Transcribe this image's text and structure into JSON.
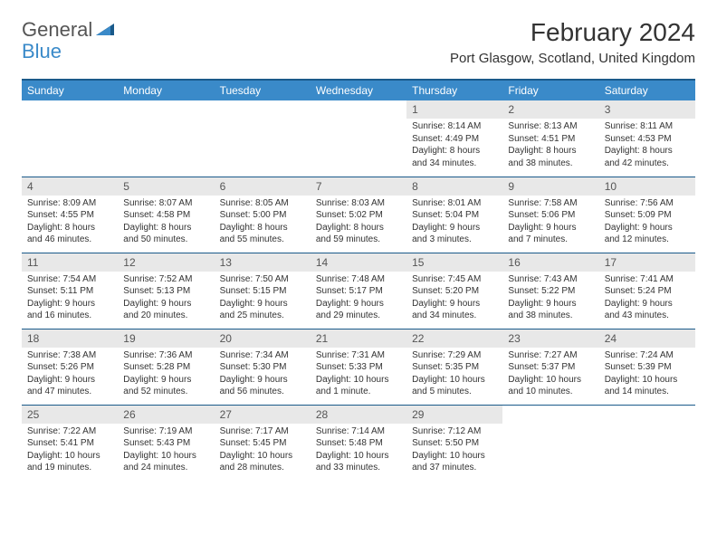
{
  "logo": {
    "text1": "General",
    "text2": "Blue"
  },
  "title": "February 2024",
  "location": "Port Glasgow, Scotland, United Kingdom",
  "colors": {
    "header_bg": "#3a8ac9",
    "header_border": "#1a5a8a",
    "daynum_bg": "#e8e8e8",
    "text": "#333333",
    "logo_gray": "#555555",
    "logo_blue": "#3a8ac9"
  },
  "weekdays": [
    "Sunday",
    "Monday",
    "Tuesday",
    "Wednesday",
    "Thursday",
    "Friday",
    "Saturday"
  ],
  "weeks": [
    [
      null,
      null,
      null,
      null,
      {
        "n": "1",
        "sr": "Sunrise: 8:14 AM",
        "ss": "Sunset: 4:49 PM",
        "dl": "Daylight: 8 hours and 34 minutes."
      },
      {
        "n": "2",
        "sr": "Sunrise: 8:13 AM",
        "ss": "Sunset: 4:51 PM",
        "dl": "Daylight: 8 hours and 38 minutes."
      },
      {
        "n": "3",
        "sr": "Sunrise: 8:11 AM",
        "ss": "Sunset: 4:53 PM",
        "dl": "Daylight: 8 hours and 42 minutes."
      }
    ],
    [
      {
        "n": "4",
        "sr": "Sunrise: 8:09 AM",
        "ss": "Sunset: 4:55 PM",
        "dl": "Daylight: 8 hours and 46 minutes."
      },
      {
        "n": "5",
        "sr": "Sunrise: 8:07 AM",
        "ss": "Sunset: 4:58 PM",
        "dl": "Daylight: 8 hours and 50 minutes."
      },
      {
        "n": "6",
        "sr": "Sunrise: 8:05 AM",
        "ss": "Sunset: 5:00 PM",
        "dl": "Daylight: 8 hours and 55 minutes."
      },
      {
        "n": "7",
        "sr": "Sunrise: 8:03 AM",
        "ss": "Sunset: 5:02 PM",
        "dl": "Daylight: 8 hours and 59 minutes."
      },
      {
        "n": "8",
        "sr": "Sunrise: 8:01 AM",
        "ss": "Sunset: 5:04 PM",
        "dl": "Daylight: 9 hours and 3 minutes."
      },
      {
        "n": "9",
        "sr": "Sunrise: 7:58 AM",
        "ss": "Sunset: 5:06 PM",
        "dl": "Daylight: 9 hours and 7 minutes."
      },
      {
        "n": "10",
        "sr": "Sunrise: 7:56 AM",
        "ss": "Sunset: 5:09 PM",
        "dl": "Daylight: 9 hours and 12 minutes."
      }
    ],
    [
      {
        "n": "11",
        "sr": "Sunrise: 7:54 AM",
        "ss": "Sunset: 5:11 PM",
        "dl": "Daylight: 9 hours and 16 minutes."
      },
      {
        "n": "12",
        "sr": "Sunrise: 7:52 AM",
        "ss": "Sunset: 5:13 PM",
        "dl": "Daylight: 9 hours and 20 minutes."
      },
      {
        "n": "13",
        "sr": "Sunrise: 7:50 AM",
        "ss": "Sunset: 5:15 PM",
        "dl": "Daylight: 9 hours and 25 minutes."
      },
      {
        "n": "14",
        "sr": "Sunrise: 7:48 AM",
        "ss": "Sunset: 5:17 PM",
        "dl": "Daylight: 9 hours and 29 minutes."
      },
      {
        "n": "15",
        "sr": "Sunrise: 7:45 AM",
        "ss": "Sunset: 5:20 PM",
        "dl": "Daylight: 9 hours and 34 minutes."
      },
      {
        "n": "16",
        "sr": "Sunrise: 7:43 AM",
        "ss": "Sunset: 5:22 PM",
        "dl": "Daylight: 9 hours and 38 minutes."
      },
      {
        "n": "17",
        "sr": "Sunrise: 7:41 AM",
        "ss": "Sunset: 5:24 PM",
        "dl": "Daylight: 9 hours and 43 minutes."
      }
    ],
    [
      {
        "n": "18",
        "sr": "Sunrise: 7:38 AM",
        "ss": "Sunset: 5:26 PM",
        "dl": "Daylight: 9 hours and 47 minutes."
      },
      {
        "n": "19",
        "sr": "Sunrise: 7:36 AM",
        "ss": "Sunset: 5:28 PM",
        "dl": "Daylight: 9 hours and 52 minutes."
      },
      {
        "n": "20",
        "sr": "Sunrise: 7:34 AM",
        "ss": "Sunset: 5:30 PM",
        "dl": "Daylight: 9 hours and 56 minutes."
      },
      {
        "n": "21",
        "sr": "Sunrise: 7:31 AM",
        "ss": "Sunset: 5:33 PM",
        "dl": "Daylight: 10 hours and 1 minute."
      },
      {
        "n": "22",
        "sr": "Sunrise: 7:29 AM",
        "ss": "Sunset: 5:35 PM",
        "dl": "Daylight: 10 hours and 5 minutes."
      },
      {
        "n": "23",
        "sr": "Sunrise: 7:27 AM",
        "ss": "Sunset: 5:37 PM",
        "dl": "Daylight: 10 hours and 10 minutes."
      },
      {
        "n": "24",
        "sr": "Sunrise: 7:24 AM",
        "ss": "Sunset: 5:39 PM",
        "dl": "Daylight: 10 hours and 14 minutes."
      }
    ],
    [
      {
        "n": "25",
        "sr": "Sunrise: 7:22 AM",
        "ss": "Sunset: 5:41 PM",
        "dl": "Daylight: 10 hours and 19 minutes."
      },
      {
        "n": "26",
        "sr": "Sunrise: 7:19 AM",
        "ss": "Sunset: 5:43 PM",
        "dl": "Daylight: 10 hours and 24 minutes."
      },
      {
        "n": "27",
        "sr": "Sunrise: 7:17 AM",
        "ss": "Sunset: 5:45 PM",
        "dl": "Daylight: 10 hours and 28 minutes."
      },
      {
        "n": "28",
        "sr": "Sunrise: 7:14 AM",
        "ss": "Sunset: 5:48 PM",
        "dl": "Daylight: 10 hours and 33 minutes."
      },
      {
        "n": "29",
        "sr": "Sunrise: 7:12 AM",
        "ss": "Sunset: 5:50 PM",
        "dl": "Daylight: 10 hours and 37 minutes."
      },
      null,
      null
    ]
  ]
}
